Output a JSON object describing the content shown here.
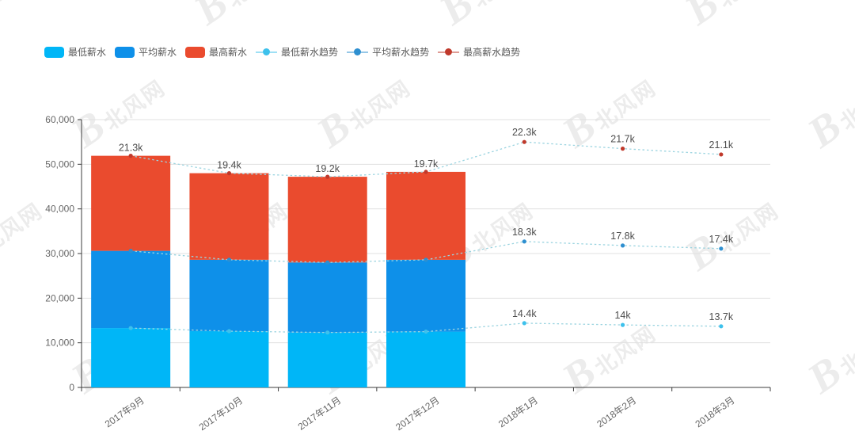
{
  "watermark": {
    "brand_initial": "B",
    "brand_text": "北风网"
  },
  "legend": [
    {
      "label": "最低薪水",
      "type": "bar",
      "color": "#00b6f7"
    },
    {
      "label": "平均薪水",
      "type": "bar",
      "color": "#0e90e9"
    },
    {
      "label": "最高薪水",
      "type": "bar",
      "color": "#ea4b2e"
    },
    {
      "label": "最低薪水趋势",
      "type": "line",
      "color": "#3dc1ec"
    },
    {
      "label": "平均薪水趋势",
      "type": "line",
      "color": "#2e8fd0"
    },
    {
      "label": "最高薪水趋势",
      "type": "line",
      "color": "#c0392b"
    }
  ],
  "chart_data": {
    "type": "bar",
    "subtype": "stacked-bars-with-stacked-trend-lines",
    "categories": [
      "2017年9月",
      "2017年10月",
      "2017年11月",
      "2017年12月",
      "2018年1月",
      "2018年2月",
      "2018年3月"
    ],
    "stacked": true,
    "unit": "k",
    "bar_series": [
      {
        "name": "最低薪水",
        "color": "#00b6f7",
        "label_color": "#1076c9",
        "values": [
          13.3,
          12.6,
          12.3,
          12.5
        ]
      },
      {
        "name": "平均薪水",
        "color": "#0e90e9",
        "label_color": "#c0392b",
        "values": [
          17.3,
          16,
          15.7,
          16.1
        ]
      },
      {
        "name": "最高薪水",
        "color": "#ea4b2e",
        "label_color": "#4d4d4d",
        "values": [
          21.3,
          19.4,
          19.2,
          19.7
        ]
      }
    ],
    "line_series": [
      {
        "name": "最低薪水趋势",
        "marker_color": "#3dc1ec",
        "values": [
          13.3,
          12.6,
          12.3,
          12.5,
          14.4,
          14,
          13.7
        ]
      },
      {
        "name": "平均薪水趋势",
        "marker_color": "#2e8fd0",
        "values": [
          17.3,
          16,
          15.7,
          16.1,
          18.3,
          17.8,
          17.4
        ]
      },
      {
        "name": "最高薪水趋势",
        "marker_color": "#c0392b",
        "values": [
          21.3,
          19.4,
          19.2,
          19.7,
          22.3,
          21.7,
          21.1
        ]
      }
    ],
    "line_labels_from_index": 4,
    "line_label_color": "#4d4d4d",
    "line_stroke": "#9bd4e0",
    "ylim": [
      0,
      60000
    ],
    "y_ticks": [
      0,
      10000,
      20000,
      30000,
      40000,
      50000,
      60000
    ],
    "grid_color": "#e0e0e0",
    "axis_color": "#3c3c3c",
    "tick_label_color": "#666666",
    "legend_position": "top-left",
    "grid": true
  }
}
